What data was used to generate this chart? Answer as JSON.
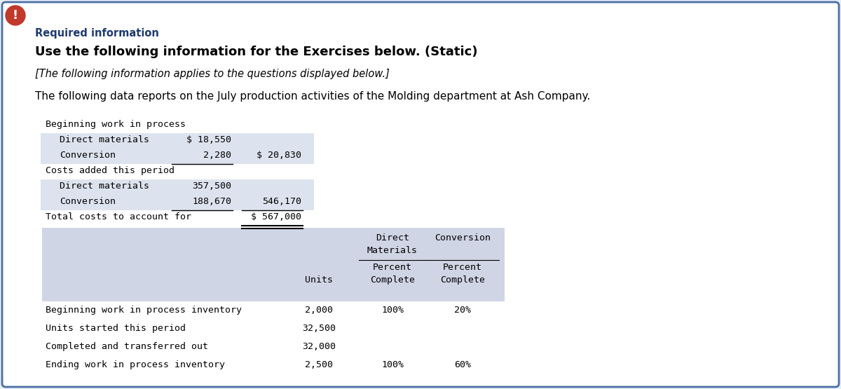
{
  "bg_color": "#e8edf2",
  "border_color": "#4a6fa5",
  "icon_bg": "#c0392b",
  "header_color": "#1e3a6e",
  "header_text": "Required information",
  "bold_line": "Use the following information for the Exercises below. (Static)",
  "italic_line": "[The following information applies to the questions displayed below.]",
  "intro_line": "The following data reports on the July production activities of the Molding department at Ash Company.",
  "cost_lines": [
    {
      "indent": 0,
      "label": "Beginning work in process",
      "col1": "",
      "col2": ""
    },
    {
      "indent": 1,
      "label": "Direct materials",
      "col1": "$ 18,550",
      "col2": "",
      "shade": true
    },
    {
      "indent": 1,
      "label": "Conversion",
      "col1": "2,280",
      "col2": "$ 20,830",
      "underline_col1": true,
      "shade": true
    },
    {
      "indent": 0,
      "label": "Costs added this period",
      "col1": "",
      "col2": ""
    },
    {
      "indent": 1,
      "label": "Direct materials",
      "col1": "357,500",
      "col2": "",
      "shade": true
    },
    {
      "indent": 1,
      "label": "Conversion",
      "col1": "188,670",
      "col2": "546,170",
      "underline_col1": true,
      "underline_col2": true,
      "shade": true
    },
    {
      "indent": 0,
      "label": "Total costs to account for",
      "col1": "",
      "col2": "$ 567,000",
      "double_underline_col2": true
    }
  ],
  "shade_color": "#dde3ee",
  "table_bg": "#d0d5e5",
  "table_rows": [
    [
      "Beginning work in process inventory",
      "2,000",
      "100%",
      "20%"
    ],
    [
      "Units started this period",
      "32,500",
      "",
      ""
    ],
    [
      "Completed and transferred out",
      "32,000",
      "",
      ""
    ],
    [
      "Ending work in process inventory",
      "2,500",
      "100%",
      "60%"
    ]
  ]
}
